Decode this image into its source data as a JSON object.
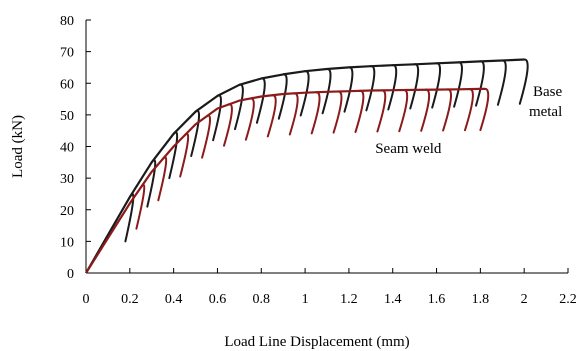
{
  "chart_data": {
    "type": "line",
    "xlabel": "Load Line Displacement (mm)",
    "ylabel": "Load (kN)",
    "xlim": [
      0,
      2.2
    ],
    "ylim": [
      0,
      80
    ],
    "xticks": [
      0,
      0.2,
      0.4,
      0.6,
      0.8,
      1,
      1.2,
      1.4,
      1.6,
      1.8,
      2,
      2.2
    ],
    "yticks": [
      0,
      10,
      20,
      30,
      40,
      50,
      60,
      70,
      80
    ],
    "grid": false,
    "annotations": [
      {
        "lines": [
          "Base",
          "metal"
        ],
        "x": 2.04,
        "y": 56
      },
      {
        "lines": [
          "Seam weld"
        ],
        "x": 1.32,
        "y": 38
      }
    ],
    "series": [
      {
        "color": "#1a1a1a",
        "envelope_x": [
          0,
          0.1,
          0.2,
          0.3,
          0.4,
          0.5,
          0.6,
          0.7,
          0.8,
          0.9,
          1.0,
          1.1,
          1.2,
          1.3,
          1.4,
          1.5,
          1.6,
          1.7,
          1.8,
          1.9,
          2.0
        ],
        "envelope_y": [
          0,
          12,
          24,
          35,
          44,
          51,
          56,
          59.5,
          61.5,
          62.8,
          63.8,
          64.5,
          65,
          65.4,
          65.7,
          66,
          66.3,
          66.6,
          66.9,
          67.2,
          67.5
        ],
        "unload_x": [
          0.2,
          0.3,
          0.4,
          0.5,
          0.6,
          0.7,
          0.8,
          0.9,
          1.0,
          1.1,
          1.2,
          1.3,
          1.4,
          1.5,
          1.6,
          1.7,
          1.8,
          1.9,
          2.0
        ],
        "unload_drop": 14,
        "unload_dx": 0.03
      },
      {
        "color": "#8b1a1a",
        "envelope_x": [
          0,
          0.1,
          0.2,
          0.3,
          0.4,
          0.5,
          0.6,
          0.7,
          0.8,
          0.9,
          1.0,
          1.1,
          1.2,
          1.3,
          1.4,
          1.5,
          1.6,
          1.7,
          1.8,
          1.82
        ],
        "envelope_y": [
          0,
          11,
          22,
          32,
          40,
          47,
          52,
          54.5,
          55.8,
          56.6,
          57,
          57.3,
          57.5,
          57.7,
          57.8,
          57.9,
          58,
          58.1,
          58.2,
          58.2
        ],
        "unload_x": [
          0.25,
          0.35,
          0.45,
          0.55,
          0.65,
          0.75,
          0.85,
          0.95,
          1.05,
          1.15,
          1.25,
          1.35,
          1.45,
          1.55,
          1.65,
          1.75,
          1.82
        ],
        "unload_drop": 13,
        "unload_dx": 0.03
      }
    ]
  }
}
